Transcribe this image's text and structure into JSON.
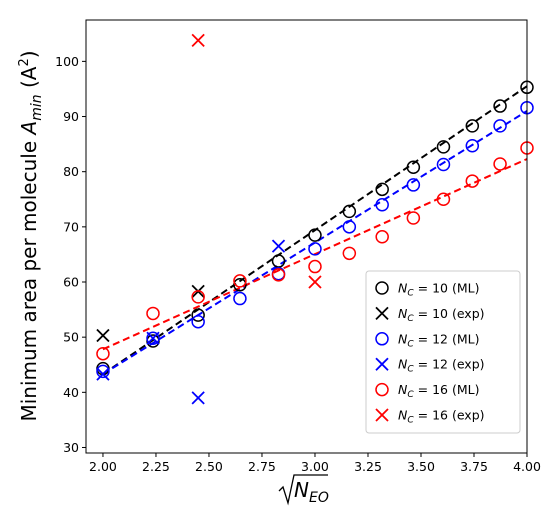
{
  "chart_data": {
    "type": "scatter",
    "xlabel": "√N_EO",
    "ylabel": "Minimum area per molecule A_min (Å²)",
    "xlim": [
      1.92,
      4.0
    ],
    "ylim": [
      29,
      107.5
    ],
    "xticks": [
      "2.00",
      "2.25",
      "2.50",
      "2.75",
      "3.00",
      "3.25",
      "3.50",
      "3.75",
      "4.00"
    ],
    "yticks": [
      "30",
      "40",
      "50",
      "60",
      "70",
      "80",
      "90",
      "100"
    ],
    "grid": false,
    "legend_position": "lower-right",
    "series": [
      {
        "name": "N_C = 10 (ML)",
        "legend_sub": "C",
        "legend_value": "10",
        "legend_tag": "(ML)",
        "marker": "circle",
        "color": "#000000",
        "points": [
          [
            2.0,
            44.3
          ],
          [
            2.236,
            49.3
          ],
          [
            2.449,
            54.0
          ],
          [
            2.646,
            59.5
          ],
          [
            2.828,
            63.8
          ],
          [
            3.0,
            68.5
          ],
          [
            3.162,
            72.8
          ],
          [
            3.317,
            76.8
          ],
          [
            3.464,
            80.8
          ],
          [
            3.606,
            84.5
          ],
          [
            3.742,
            88.3
          ],
          [
            3.873,
            91.9
          ],
          [
            4.0,
            95.3
          ]
        ]
      },
      {
        "name": "N_C = 10 (exp)",
        "legend_sub": "C",
        "legend_value": "10",
        "legend_tag": "(exp)",
        "marker": "x",
        "color": "#000000",
        "points": [
          [
            2.0,
            50.3
          ],
          [
            2.449,
            58.3
          ]
        ]
      },
      {
        "name": "N_C = 12 (ML)",
        "legend_sub": "C",
        "legend_value": "12",
        "legend_tag": "(ML)",
        "marker": "circle",
        "color": "#0000ff",
        "points": [
          [
            2.0,
            43.8
          ],
          [
            2.236,
            49.8
          ],
          [
            2.449,
            52.8
          ],
          [
            2.646,
            57.0
          ],
          [
            2.828,
            61.5
          ],
          [
            3.0,
            66.0
          ],
          [
            3.162,
            70.0
          ],
          [
            3.317,
            74.0
          ],
          [
            3.464,
            77.6
          ],
          [
            3.606,
            81.3
          ],
          [
            3.742,
            84.7
          ],
          [
            3.873,
            88.3
          ],
          [
            4.0,
            91.6
          ]
        ]
      },
      {
        "name": "N_C = 12 (exp)",
        "legend_sub": "C",
        "legend_value": "12",
        "legend_tag": "(exp)",
        "marker": "x",
        "color": "#0000ff",
        "points": [
          [
            2.0,
            43.3
          ],
          [
            2.236,
            49.8
          ],
          [
            2.449,
            39.0
          ],
          [
            2.828,
            66.5
          ]
        ]
      },
      {
        "name": "N_C = 16 (ML)",
        "legend_sub": "C",
        "legend_value": "16",
        "legend_tag": "(ML)",
        "marker": "circle",
        "color": "#ff0000",
        "points": [
          [
            2.0,
            47.0
          ],
          [
            2.236,
            54.3
          ],
          [
            2.449,
            57.3
          ],
          [
            2.646,
            60.2
          ],
          [
            2.828,
            61.3
          ],
          [
            3.0,
            62.8
          ],
          [
            3.162,
            65.2
          ],
          [
            3.317,
            68.2
          ],
          [
            3.464,
            71.6
          ],
          [
            3.606,
            75.0
          ],
          [
            3.742,
            78.3
          ],
          [
            3.873,
            81.4
          ],
          [
            4.0,
            84.3
          ]
        ]
      },
      {
        "name": "N_C = 16 (exp)",
        "legend_sub": "C",
        "legend_value": "16",
        "legend_tag": "(exp)",
        "marker": "x",
        "color": "#ff0000",
        "points": [
          [
            2.449,
            103.8
          ],
          [
            3.0,
            60.0
          ]
        ]
      }
    ],
    "fit_lines": [
      {
        "color": "#000000",
        "from": [
          2.0,
          43.3
        ],
        "to": [
          4.0,
          95.5
        ]
      },
      {
        "color": "#0000ff",
        "from": [
          2.0,
          43.3
        ],
        "to": [
          4.0,
          91.0
        ]
      },
      {
        "color": "#ff0000",
        "from": [
          2.0,
          47.8
        ],
        "to": [
          4.0,
          82.3
        ]
      }
    ]
  }
}
